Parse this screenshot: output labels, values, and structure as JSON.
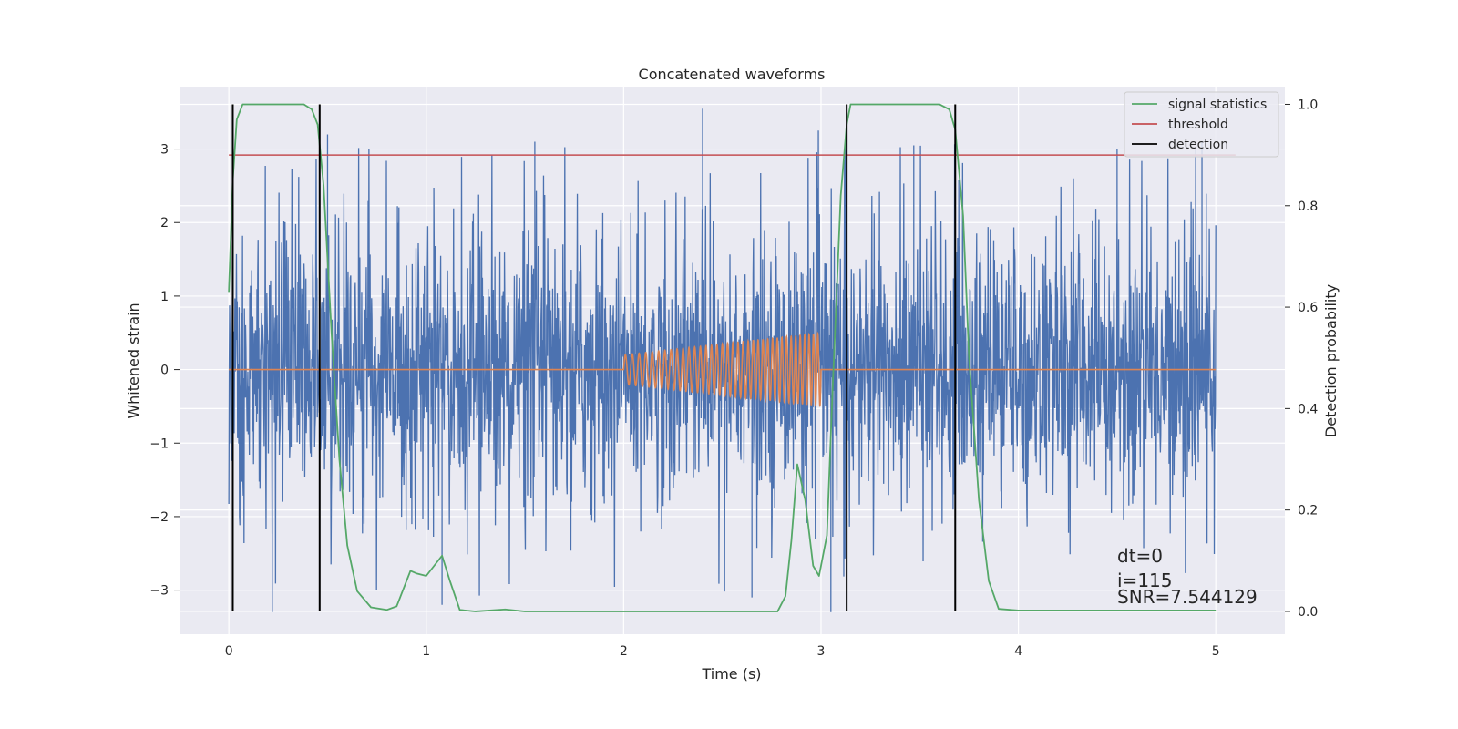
{
  "chart_data": {
    "type": "line",
    "title": "Concatenated waveforms",
    "xlabel": "Time (s)",
    "ylabel": "Whitened strain",
    "y2label": "Detection probability",
    "xlim": [
      -0.25,
      5.35
    ],
    "ylim": [
      -3.6,
      3.85
    ],
    "y2lim": [
      -0.045,
      1.035
    ],
    "xticks": [
      0,
      1,
      2,
      3,
      4,
      5
    ],
    "yticks": [
      -3,
      -2,
      -1,
      0,
      1,
      2,
      3
    ],
    "y2ticks": [
      0.0,
      0.2,
      0.4,
      0.6,
      0.8,
      1.0
    ],
    "xtick_labels": [
      "0",
      "1",
      "2",
      "3",
      "4",
      "5"
    ],
    "ytick_labels": [
      "−3",
      "−2",
      "−1",
      "0",
      "1",
      "2",
      "3"
    ],
    "y2tick_labels": [
      "0.0",
      "0.2",
      "0.4",
      "0.6",
      "0.8",
      "1.0"
    ],
    "grid": true,
    "legend_position": "top-right",
    "legend": [
      "signal statistics",
      "threshold",
      "detection"
    ],
    "colors": {
      "strain": "#4c72b0",
      "template": "#dd8452",
      "signal_statistics": "#55a868",
      "threshold": "#c44e52",
      "detection": "#000000",
      "plot_background": "#eaeaf2",
      "grid": "#ffffff"
    },
    "series": [
      {
        "name": "signal statistics",
        "axis": "right",
        "x": [
          0,
          0.02,
          0.04,
          0.07,
          0.1,
          0.2,
          0.3,
          0.38,
          0.42,
          0.45,
          0.48,
          0.52,
          0.56,
          0.6,
          0.65,
          0.72,
          0.8,
          0.85,
          0.88,
          0.92,
          0.95,
          1.0,
          1.04,
          1.08,
          1.12,
          1.17,
          1.25,
          1.4,
          1.5,
          2.0,
          2.5,
          2.78,
          2.82,
          2.85,
          2.88,
          2.92,
          2.96,
          2.99,
          3.03,
          3.06,
          3.1,
          3.13,
          3.15,
          3.2,
          3.3,
          3.5,
          3.6,
          3.65,
          3.68,
          3.72,
          3.75,
          3.8,
          3.85,
          3.9,
          4.0,
          5.0
        ],
        "y": [
          0.63,
          0.85,
          0.97,
          1.0,
          1.0,
          1.0,
          1.0,
          1.0,
          0.99,
          0.96,
          0.84,
          0.55,
          0.3,
          0.13,
          0.04,
          0.008,
          0.003,
          0.01,
          0.04,
          0.08,
          0.075,
          0.07,
          0.09,
          0.11,
          0.06,
          0.003,
          0.0,
          0.004,
          0.0,
          0.0,
          0.0,
          0.0,
          0.03,
          0.14,
          0.29,
          0.22,
          0.09,
          0.07,
          0.15,
          0.45,
          0.82,
          0.96,
          1.0,
          1.0,
          1.0,
          1.0,
          1.0,
          0.99,
          0.95,
          0.78,
          0.5,
          0.22,
          0.06,
          0.005,
          0.002,
          0.002
        ]
      },
      {
        "name": "threshold",
        "axis": "right",
        "x": [
          0,
          5.1
        ],
        "y": [
          0.9,
          0.9
        ]
      },
      {
        "name": "detection",
        "axis": "right",
        "vlines_x": [
          0.02,
          0.46,
          3.13,
          3.68
        ],
        "ymin": 0,
        "ymax": 1
      },
      {
        "axis": "left",
        "kind": "whitened strain noise",
        "x_range": [
          0,
          5
        ],
        "typical_abs_max": 2.5,
        "extremes": [
          3.55,
          -3.3
        ]
      },
      {
        "axis": "left",
        "kind": "injected chirp template",
        "x_range": [
          0,
          5
        ],
        "chirp_x_range": [
          2,
          3
        ],
        "amplitude_start": 0.2,
        "amplitude_end": 0.5
      }
    ],
    "annotations": [
      "dt=0",
      "i=115",
      "SNR=7.544129"
    ]
  }
}
